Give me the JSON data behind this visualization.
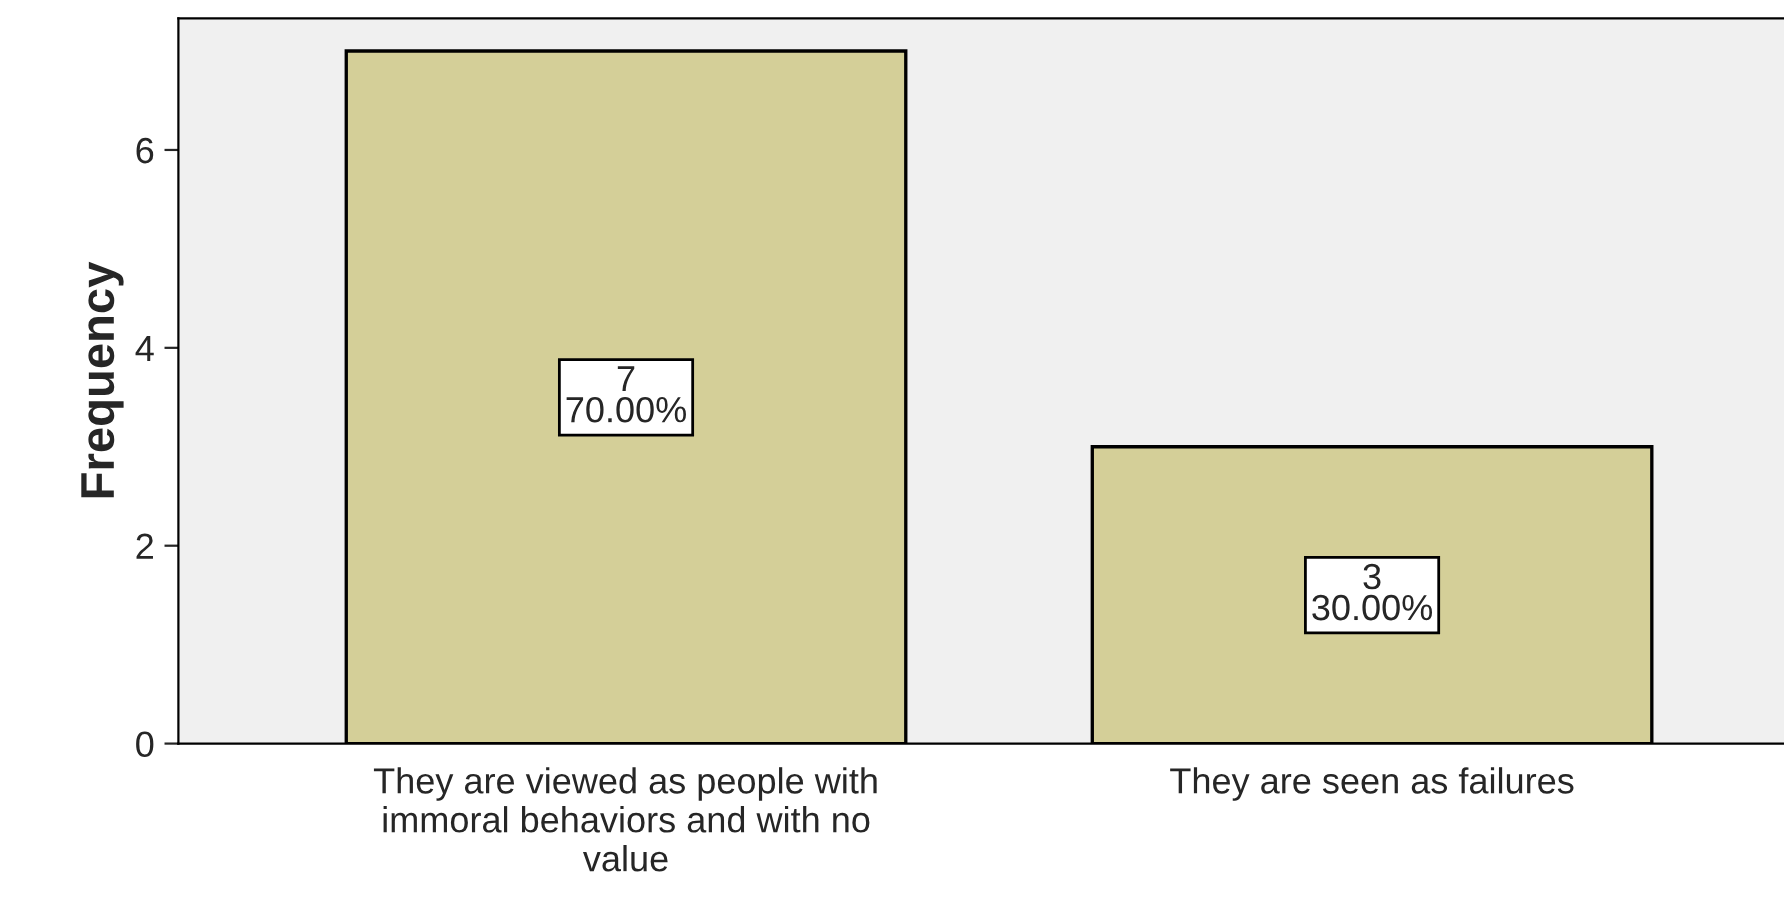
{
  "chart_data": {
    "type": "bar",
    "ylabel": "Frequency",
    "categories": [
      "They are viewed as people with\nimmoral behaviors and with no\nvalue",
      "They are seen as failures"
    ],
    "values": [
      7,
      3
    ],
    "color": "#d4cf98",
    "value_labels": [
      "7\n70.00%",
      "3\n30.00%"
    ],
    "ylim": [
      0,
      7.33
    ],
    "yticks": [
      0,
      2,
      4,
      6
    ],
    "grid": false,
    "legend": false
  }
}
